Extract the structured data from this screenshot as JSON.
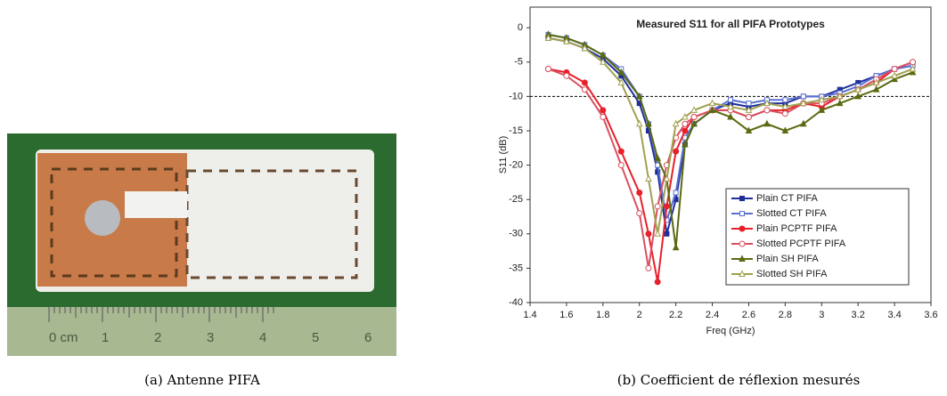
{
  "photo": {
    "ruler_labels": [
      "0 cm",
      "1",
      "2",
      "3",
      "4",
      "5",
      "6"
    ]
  },
  "captions": [
    "(a) Antenne PIFA",
    "(b) Coefficient de réflexion mesurés"
  ],
  "chart_data": {
    "type": "line",
    "title": "Measured S11 for all PIFA Prototypes",
    "x_label": "Freq (GHz)",
    "y_label": "S11 (dB)",
    "x": [
      1.5,
      1.6,
      1.7,
      1.8,
      1.9,
      2.0,
      2.05,
      2.1,
      2.15,
      2.2,
      2.25,
      2.3,
      2.4,
      2.5,
      2.6,
      2.7,
      2.8,
      2.9,
      3.0,
      3.1,
      3.2,
      3.3,
      3.4,
      3.5
    ],
    "series": [
      {
        "name": "Plain CT PIFA",
        "color": "#1f2f9a",
        "marker": "square",
        "filled": true,
        "values": [
          -1.5,
          -2,
          -3,
          -4.5,
          -7,
          -11,
          -15,
          -21,
          -30,
          -25,
          -17,
          -14,
          -12,
          -11,
          -11.5,
          -11,
          -11,
          -10,
          -10,
          -9,
          -8,
          -7,
          -6,
          -5.5
        ]
      },
      {
        "name": "Slotted CT PIFA",
        "color": "#5a6fd0",
        "marker": "square",
        "filled": false,
        "values": [
          -1,
          -1.5,
          -2.5,
          -4,
          -6,
          -10,
          -14,
          -20,
          -28,
          -24,
          -16,
          -14,
          -12,
          -10.5,
          -11,
          -10.5,
          -10.5,
          -10,
          -10,
          -9.5,
          -8.5,
          -7,
          -6,
          -5.5
        ]
      },
      {
        "name": "Plain PCPTF PIFA",
        "color": "#e8202a",
        "marker": "circle",
        "filled": true,
        "values": [
          -6,
          -6.5,
          -8,
          -12,
          -18,
          -24,
          -30,
          -37,
          -26,
          -18,
          -15,
          -13,
          -12,
          -12,
          -13,
          -12,
          -12,
          -11,
          -11.5,
          -10,
          -9,
          -8,
          -6,
          -5
        ]
      },
      {
        "name": "Slotted PCPTF PIFA",
        "color": "#d85060",
        "marker": "circle",
        "filled": false,
        "values": [
          -6,
          -7,
          -9,
          -13,
          -20,
          -27,
          -35,
          -26,
          -20,
          -16,
          -14,
          -13,
          -12,
          -12,
          -13,
          -12,
          -12.5,
          -11,
          -11,
          -10,
          -9,
          -7.5,
          -6,
          -5
        ]
      },
      {
        "name": "Plain SH PIFA",
        "color": "#5a6a10",
        "marker": "triangle",
        "filled": true,
        "values": [
          -1,
          -1.5,
          -2.5,
          -4,
          -6.5,
          -10,
          -14,
          -19,
          -22,
          -32,
          -17,
          -14,
          -12,
          -13,
          -15,
          -14,
          -15,
          -14,
          -12,
          -11,
          -10,
          -9,
          -7.5,
          -6.5
        ]
      },
      {
        "name": "Slotted SH PIFA",
        "color": "#a0a050",
        "marker": "triangle",
        "filled": false,
        "values": [
          -1.5,
          -2,
          -3,
          -5,
          -8,
          -14,
          -22,
          -30,
          -22,
          -14,
          -13,
          -12,
          -11,
          -11.5,
          -12,
          -11,
          -11.5,
          -11,
          -10.5,
          -10,
          -9,
          -8,
          -7,
          -6
        ]
      }
    ],
    "reference_line": -10,
    "xlim": [
      1.4,
      3.6
    ],
    "xticks": [
      1.4,
      1.6,
      1.8,
      2.0,
      2.2,
      2.4,
      2.6,
      2.8,
      3.0,
      3.2,
      3.4,
      3.6
    ],
    "ylim": [
      -40,
      3
    ],
    "yticks": [
      0,
      -5,
      -10,
      -15,
      -20,
      -25,
      -30,
      -35,
      -40
    ],
    "legend": "lower-right"
  }
}
